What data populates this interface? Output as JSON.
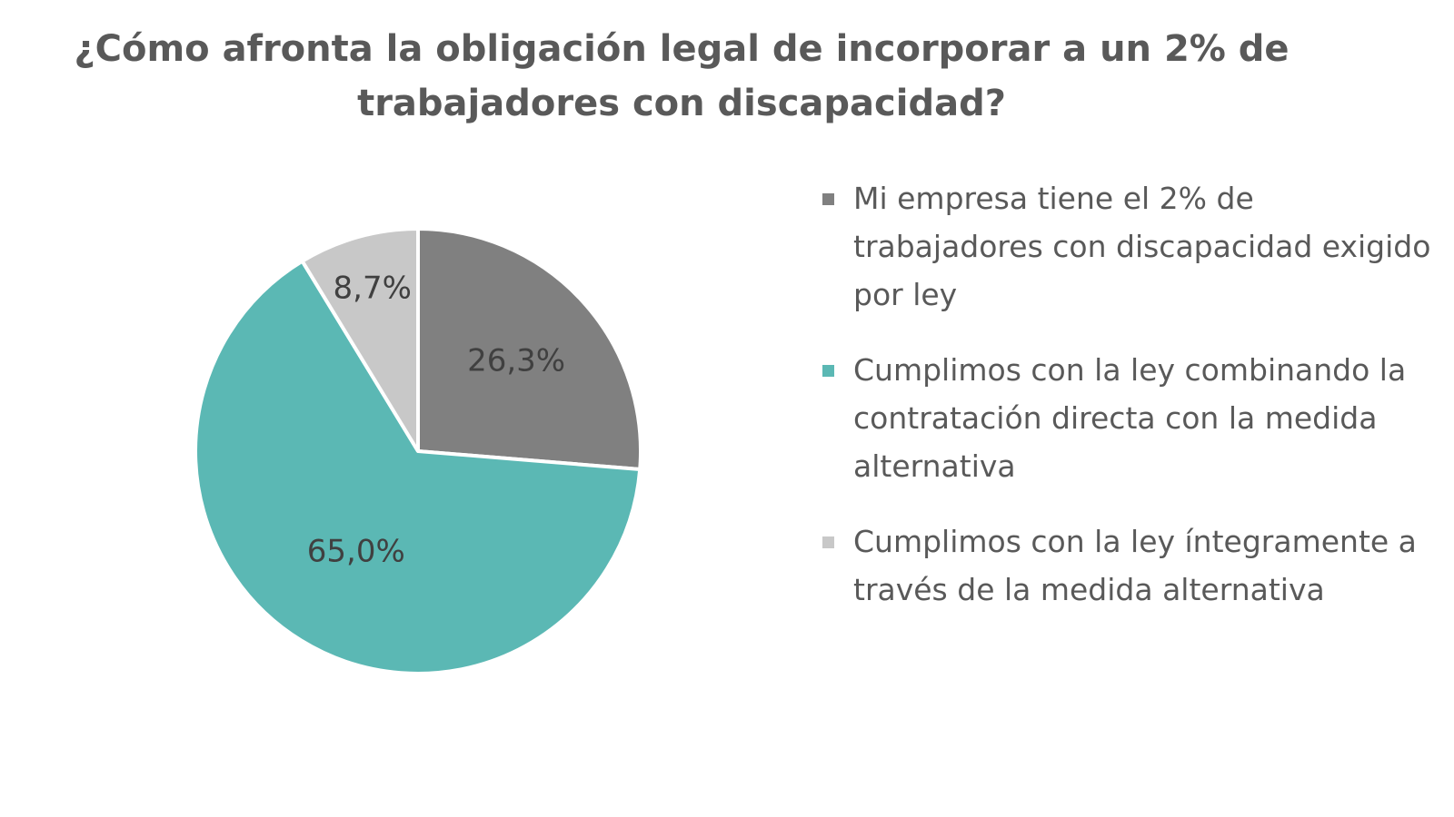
{
  "chart_data": {
    "type": "pie",
    "title": "¿Cómo afronta la obligación legal de incorporar a un 2% de trabajadores con discapacidad?",
    "legend_position": "right",
    "slices": [
      {
        "label": "Mi empresa tiene el 2% de trabajadores con discapacidad exigido por ley",
        "value": 26.3,
        "value_label": "26,3%",
        "color": "#808080"
      },
      {
        "label": "Cumplimos con la ley combinando la contratación directa con la medida alternativa",
        "value": 65.0,
        "value_label": "65,0%",
        "color": "#5BB8B4"
      },
      {
        "label": "Cumplimos con la ley íntegramente a través de la medida alternativa",
        "value": 8.7,
        "value_label": "8,7%",
        "color": "#C8C8C8"
      }
    ]
  }
}
